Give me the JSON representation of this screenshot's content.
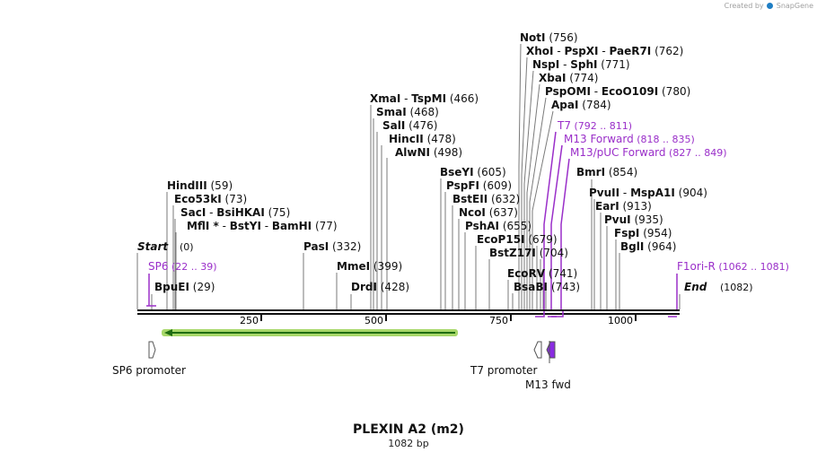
{
  "watermark": {
    "text": "Created by",
    "brand": "SnapGene"
  },
  "map": {
    "name": "PLEXIN A2 (m2)",
    "length_label": "1082 bp",
    "length": 1082,
    "start_label": "Start",
    "start_pos": "(0)",
    "end_label": "End",
    "end_pos": "(1082)",
    "ticks": [
      "250",
      "500",
      "750",
      "1000"
    ]
  },
  "enzymes": [
    {
      "id": "bpuei",
      "names": [
        "BpuEI"
      ],
      "pos": "(29)"
    },
    {
      "id": "hindiii",
      "names": [
        "HindIII"
      ],
      "pos": "(59)"
    },
    {
      "id": "eco53ki",
      "names": [
        "Eco53kI"
      ],
      "pos": "(73)"
    },
    {
      "id": "saci",
      "names": [
        "SacI",
        "BsiHKAI"
      ],
      "pos": "(75)"
    },
    {
      "id": "mfli",
      "names": [
        "MflI *",
        "BstYI",
        "BamHI"
      ],
      "pos": "(77)"
    },
    {
      "id": "pasi",
      "names": [
        "PasI"
      ],
      "pos": "(332)"
    },
    {
      "id": "mmei",
      "names": [
        "MmeI"
      ],
      "pos": "(399)"
    },
    {
      "id": "drdi",
      "names": [
        "DrdI"
      ],
      "pos": "(428)"
    },
    {
      "id": "xmai",
      "names": [
        "XmaI",
        "TspMI"
      ],
      "pos": "(466)"
    },
    {
      "id": "smai",
      "names": [
        "SmaI"
      ],
      "pos": "(468)"
    },
    {
      "id": "sali",
      "names": [
        "SalI"
      ],
      "pos": "(476)"
    },
    {
      "id": "hincii",
      "names": [
        "HincII"
      ],
      "pos": "(478)"
    },
    {
      "id": "alwni",
      "names": [
        "AlwNI"
      ],
      "pos": "(498)"
    },
    {
      "id": "bseyi",
      "names": [
        "BseYI"
      ],
      "pos": "(605)"
    },
    {
      "id": "pspfi",
      "names": [
        "PspFI"
      ],
      "pos": "(609)"
    },
    {
      "id": "bsteii",
      "names": [
        "BstEII"
      ],
      "pos": "(632)"
    },
    {
      "id": "ncoi",
      "names": [
        "NcoI"
      ],
      "pos": "(637)"
    },
    {
      "id": "pshai",
      "names": [
        "PshAI"
      ],
      "pos": "(655)"
    },
    {
      "id": "ecop15i",
      "names": [
        "EcoP15I"
      ],
      "pos": "(679)"
    },
    {
      "id": "bstz17i",
      "names": [
        "BstZ17I"
      ],
      "pos": "(704)"
    },
    {
      "id": "ecorv",
      "names": [
        "EcoRV"
      ],
      "pos": "(741)"
    },
    {
      "id": "bsabi",
      "names": [
        "BsaBI"
      ],
      "pos": "(743)"
    },
    {
      "id": "noti",
      "names": [
        "NotI"
      ],
      "pos": "(756)"
    },
    {
      "id": "xhoi",
      "names": [
        "XhoI",
        "PspXI",
        "PaeR7I"
      ],
      "pos": "(762)"
    },
    {
      "id": "nspi",
      "names": [
        "NspI",
        "SphI"
      ],
      "pos": "(771)"
    },
    {
      "id": "xbai",
      "names": [
        "XbaI"
      ],
      "pos": "(774)"
    },
    {
      "id": "pspomi",
      "names": [
        "PspOMI",
        "EcoO109I"
      ],
      "pos": "(780)"
    },
    {
      "id": "apai",
      "names": [
        "ApaI"
      ],
      "pos": "(784)"
    },
    {
      "id": "bmri",
      "names": [
        "BmrI"
      ],
      "pos": "(854)"
    },
    {
      "id": "pvuii",
      "names": [
        "PvuII",
        "MspA1I"
      ],
      "pos": "(904)"
    },
    {
      "id": "eari",
      "names": [
        "EarI"
      ],
      "pos": "(913)"
    },
    {
      "id": "pvui",
      "names": [
        "PvuI"
      ],
      "pos": "(935)"
    },
    {
      "id": "fspi",
      "names": [
        "FspI"
      ],
      "pos": "(954)"
    },
    {
      "id": "bgli",
      "names": [
        "BglI"
      ],
      "pos": "(964)"
    }
  ],
  "primers": [
    {
      "id": "sp6",
      "name": "SP6",
      "range": "(22 .. 39)"
    },
    {
      "id": "t7",
      "name": "T7",
      "range": "(792 .. 811)"
    },
    {
      "id": "m13fwd",
      "name": "M13 Forward",
      "range": "(818 .. 835)"
    },
    {
      "id": "m13puc",
      "name": "M13/pUC Forward",
      "range": "(827 .. 849)"
    },
    {
      "id": "f1ori",
      "name": "F1ori-R",
      "range": "(1062 .. 1081)"
    }
  ],
  "features": [
    {
      "id": "sp6-promoter",
      "label": "SP6 promoter"
    },
    {
      "id": "t7-promoter",
      "label": "T7 promoter"
    },
    {
      "id": "m13-fwd",
      "label": "M13 fwd"
    }
  ],
  "colors": {
    "primer": "#9a2fc9",
    "feature_purple": "#8a2be2",
    "orf_green": "#a8d86a",
    "orf_arrow": "#1f6d12",
    "backbone": "#111111",
    "leader": "#7a7a7a"
  }
}
